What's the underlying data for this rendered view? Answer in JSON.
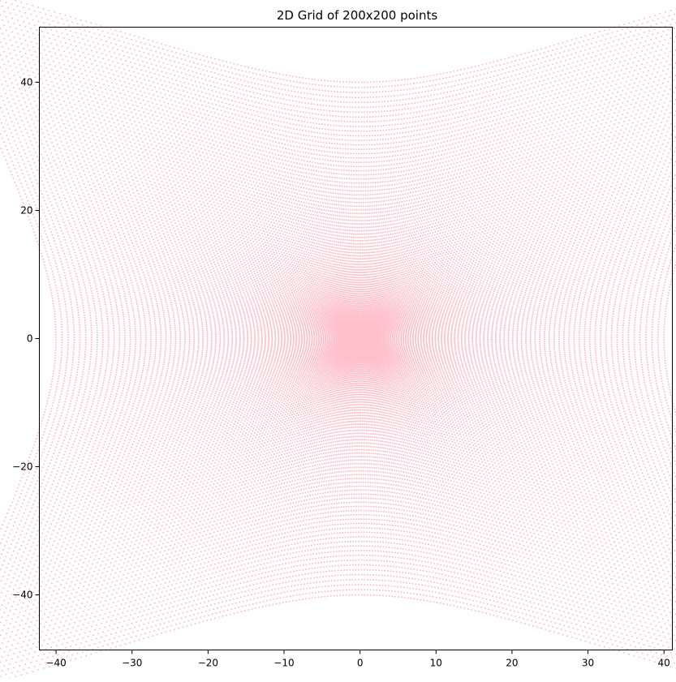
{
  "chart_data": {
    "type": "scatter",
    "title": "2D Grid of 200x200 points",
    "xlabel": "",
    "ylabel": "",
    "xlim": [
      -42.2,
      41.1
    ],
    "ylim": [
      -48.6,
      48.6
    ],
    "xticks": [
      -40,
      -30,
      -20,
      -10,
      0,
      10,
      20,
      30,
      40
    ],
    "yticks": [
      -40,
      -20,
      0,
      20,
      40
    ],
    "grid": false,
    "legend": "none",
    "series": [
      {
        "marker": "dot",
        "color": "#ffc0cb",
        "generator": {
          "grid_n": 200,
          "x": [
            -2,
            2
          ],
          "y": [
            -2,
            2
          ],
          "mapping": "x' = r^2 * cos(theta) * 10, y' = r^2 * sin(theta) * 10 with r = sqrt(x^2+y^2), theta = atan2(y,x)"
        }
      }
    ]
  }
}
